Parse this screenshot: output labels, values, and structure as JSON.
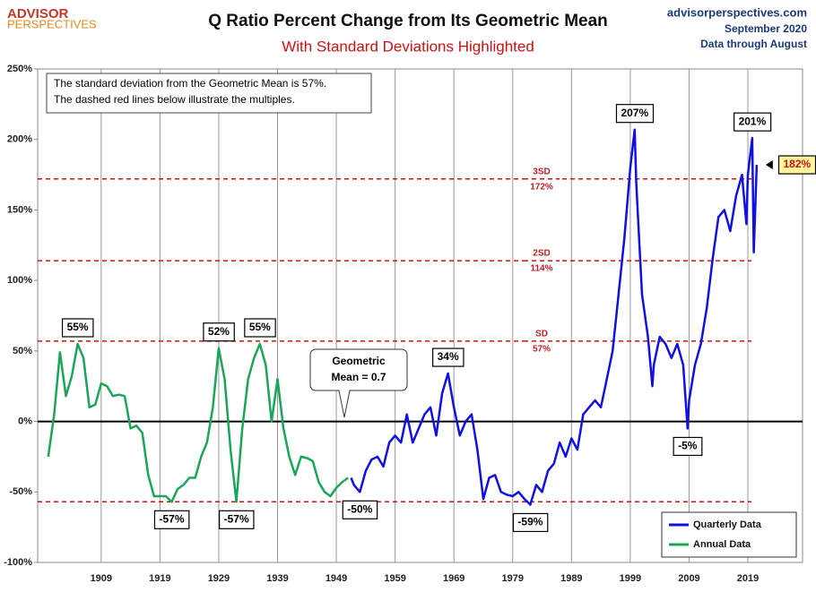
{
  "chart_data": {
    "type": "line",
    "title": "Q Ratio Percent Change from Its Geometric Mean",
    "subtitle": "With Standard Deviations Highlighted",
    "logo": [
      "ADVISOR",
      "PERSPECTIVES"
    ],
    "source": [
      "advisorperspectives.com",
      "September 2020",
      "Data through August"
    ],
    "note": [
      "The standard deviation from the Geometric Mean is 57%.",
      "The dashed red lines below illustrate the multiples."
    ],
    "mean_callout": {
      "lines": [
        "Geometric",
        "Mean = 0.7"
      ],
      "value": 0
    },
    "xlim": [
      1898.2,
      2028.3
    ],
    "xticks": [
      1909,
      1919,
      1929,
      1939,
      1949,
      1959,
      1969,
      1979,
      1989,
      1999,
      2009,
      2019
    ],
    "ylim": [
      -100,
      250
    ],
    "yticks": [
      {
        "value": -100,
        "label": "-100%"
      },
      {
        "value": -50,
        "label": "-50%"
      },
      {
        "value": 0,
        "label": "0%"
      },
      {
        "value": 50,
        "label": "50%"
      },
      {
        "value": 100,
        "label": "100%"
      },
      {
        "value": 150,
        "label": "150%"
      },
      {
        "value": 200,
        "label": "200%"
      },
      {
        "value": 250,
        "label": "250%"
      }
    ],
    "grid": true,
    "legend": "bottom-right",
    "series": [
      {
        "name": "Quarterly Data",
        "color": "#1010e0",
        "x": [
          1951.5,
          1952,
          1953,
          1954,
          1955,
          1956,
          1957,
          1958,
          1959,
          1960,
          1961,
          1962,
          1963,
          1964,
          1965,
          1966,
          1967,
          1968,
          1969,
          1970,
          1971,
          1972,
          1973,
          1974,
          1975,
          1976,
          1977,
          1978,
          1979,
          1980,
          1981,
          1982,
          1983,
          1984,
          1985,
          1986,
          1987,
          1988,
          1989,
          1990,
          1991,
          1992,
          1993,
          1994,
          1995,
          1996,
          1997,
          1998,
          1999,
          1999.75,
          2000,
          2000.5,
          2001,
          2002,
          2002.75,
          2003,
          2004,
          2005,
          2006,
          2007,
          2008,
          2008.75,
          2009,
          2010,
          2011,
          2012,
          2013,
          2014,
          2015,
          2016,
          2017,
          2018,
          2018.75,
          2019,
          2019.75,
          2020,
          2020.5
        ],
        "values": [
          -40,
          -45,
          -50,
          -35,
          -27,
          -25,
          -32,
          -15,
          -10,
          -15,
          5,
          -15,
          -5,
          5,
          10,
          -10,
          20,
          34,
          10,
          -10,
          0,
          5,
          -20,
          -55,
          -40,
          -38,
          -50,
          -52,
          -53,
          -50,
          -55,
          -59,
          -45,
          -50,
          -35,
          -30,
          -15,
          -25,
          -12,
          -20,
          5,
          10,
          15,
          10,
          30,
          50,
          90,
          130,
          180,
          207,
          170,
          130,
          90,
          60,
          25,
          40,
          60,
          55,
          45,
          55,
          40,
          -5,
          15,
          40,
          55,
          80,
          115,
          145,
          150,
          135,
          160,
          175,
          140,
          175,
          201,
          120,
          182
        ]
      },
      {
        "name": "Annual Data",
        "color": "#1aa55a",
        "x": [
          1900,
          1901,
          1902,
          1903,
          1904,
          1905,
          1906,
          1907,
          1908,
          1909,
          1910,
          1911,
          1912,
          1913,
          1914,
          1915,
          1916,
          1917,
          1918,
          1919,
          1920,
          1921,
          1922,
          1923,
          1924,
          1925,
          1926,
          1927,
          1928,
          1929,
          1930,
          1931,
          1932,
          1933,
          1934,
          1935,
          1936,
          1937,
          1938,
          1939,
          1940,
          1941,
          1942,
          1943,
          1944,
          1945,
          1946,
          1947,
          1948,
          1949,
          1950,
          1951
        ],
        "values": [
          -25,
          5,
          49,
          18,
          32,
          55,
          45,
          10,
          12,
          27,
          25,
          18,
          19,
          18,
          -5,
          -3,
          -8,
          -38,
          -53,
          -53,
          -53,
          -57,
          -48,
          -45,
          -40,
          -40,
          -25,
          -15,
          10,
          52,
          30,
          -20,
          -57,
          -5,
          30,
          45,
          55,
          40,
          0,
          30,
          -5,
          -25,
          -38,
          -25,
          -26,
          -28,
          -43,
          -50,
          -53,
          -47,
          -43,
          -40
        ]
      }
    ],
    "reference_lines": [
      {
        "value": 172,
        "name": "3SD",
        "label": "172%",
        "color": "#cc1111"
      },
      {
        "value": 114,
        "name": "2SD",
        "label": "114%",
        "color": "#cc1111"
      },
      {
        "value": 57,
        "name": "SD",
        "label": "57%",
        "color": "#cc1111"
      },
      {
        "value": -57,
        "color": "#cc1111"
      }
    ],
    "annotations": [
      {
        "label": "55%",
        "x": 1905,
        "y": 55
      },
      {
        "label": "-57%",
        "x": 1921,
        "y": -57
      },
      {
        "label": "52%",
        "x": 1929,
        "y": 52
      },
      {
        "label": "-57%",
        "x": 1932,
        "y": -57
      },
      {
        "label": "55%",
        "x": 1936,
        "y": 55
      },
      {
        "label": "-50%",
        "x": 1953,
        "y": -50
      },
      {
        "label": "34%",
        "x": 1968,
        "y": 34
      },
      {
        "label": "-59%",
        "x": 1982,
        "y": -59
      },
      {
        "label": "207%",
        "x": 1999.75,
        "y": 207
      },
      {
        "label": "-5%",
        "x": 2008.75,
        "y": -5
      },
      {
        "label": "201%",
        "x": 2019.75,
        "y": 201
      }
    ],
    "last_value_label": {
      "label": "182%",
      "value": 182
    }
  }
}
